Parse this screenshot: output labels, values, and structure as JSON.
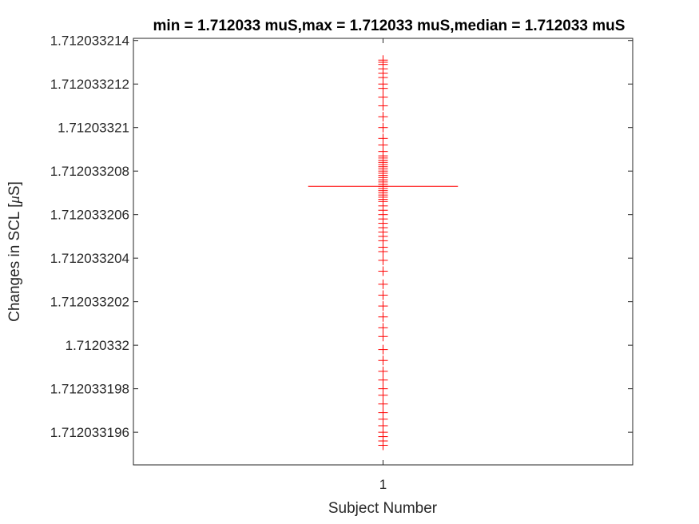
{
  "chart_data": {
    "type": "scatter",
    "title": "min = 1.712033 muS,max = 1.712033 muS,median = 1.712033 muS",
    "xlabel": "Subject Number",
    "ylabel_prefix": "Changes in SCL [",
    "ylabel_mu": "μ",
    "ylabel_suffix": "S]",
    "x_tick_labels": [
      "1"
    ],
    "xlim": [
      0.5,
      1.5
    ],
    "ylim": [
      1.7120331945,
      1.7120332141
    ],
    "y_ticks": [
      {
        "value": 1.712033196,
        "label": "1.712033196"
      },
      {
        "value": 1.712033198,
        "label": "1.712033198"
      },
      {
        "value": 1.7120332,
        "label": "1.7120332"
      },
      {
        "value": 1.712033202,
        "label": "1.712033202"
      },
      {
        "value": 1.712033204,
        "label": "1.712033204"
      },
      {
        "value": 1.712033206,
        "label": "1.712033206"
      },
      {
        "value": 1.712033208,
        "label": "1.712033208"
      },
      {
        "value": 1.71203321,
        "label": "1.71203321"
      },
      {
        "value": 1.712033212,
        "label": "1.712033212"
      },
      {
        "value": 1.712033214,
        "label": "1.712033214"
      }
    ],
    "grid": false,
    "marker_color": "#ff0000",
    "series": [
      {
        "x": 1,
        "values": [
          1.7120331954,
          1.7120331956,
          1.7120331958,
          1.712033196,
          1.7120331963,
          1.7120331966,
          1.7120331969,
          1.7120331973,
          1.7120331977,
          1.712033198,
          1.7120331984,
          1.7120331988,
          1.7120331993,
          1.7120331998,
          1.7120332004,
          1.7120332008,
          1.7120332013,
          1.7120332018,
          1.7120332023,
          1.7120332028,
          1.7120332034,
          1.7120332039,
          1.7120332043,
          1.7120332045,
          1.7120332048,
          1.712033205,
          1.7120332052,
          1.7120332054,
          1.7120332056,
          1.7120332058,
          1.712033206,
          1.7120332062,
          1.7120332064,
          1.7120332066,
          1.7120332067,
          1.7120332068,
          1.7120332069,
          1.712033207,
          1.7120332071,
          1.7120332072,
          1.7120332073,
          1.7120332074,
          1.7120332075,
          1.7120332076,
          1.7120332077,
          1.7120332078,
          1.7120332079,
          1.712033208,
          1.7120332081,
          1.7120332082,
          1.7120332083,
          1.7120332084,
          1.7120332085,
          1.7120332086,
          1.7120332087,
          1.7120332089,
          1.7120332092,
          1.7120332095,
          1.71203321,
          1.7120332105,
          1.712033211,
          1.7120332114,
          1.7120332118,
          1.712033212,
          1.7120332123,
          1.7120332125,
          1.7120332127,
          1.7120332129,
          1.712033213,
          1.7120332131
        ]
      }
    ],
    "median": 1.7120332073,
    "median_color": "#ff0000"
  }
}
